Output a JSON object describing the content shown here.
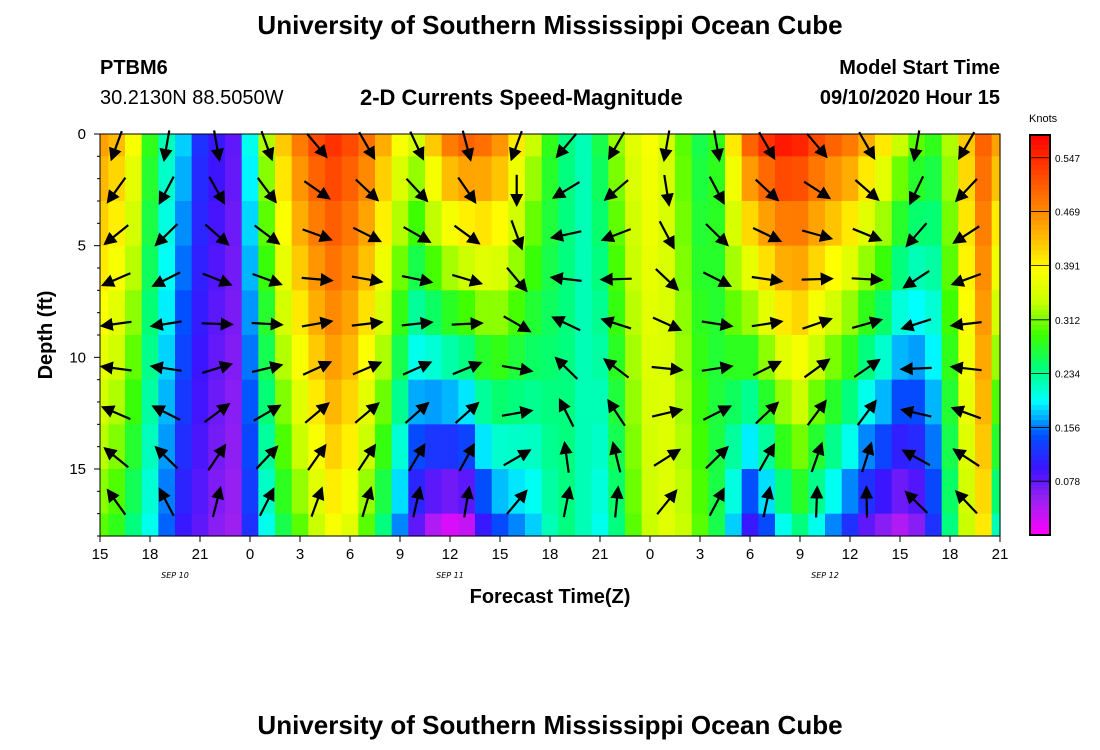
{
  "header": {
    "title_top": "University of Southern Mississippi Ocean Cube",
    "title_bottom": "University of Southern Mississippi Ocean Cube",
    "station_id": "PTBM6",
    "station_coords": "30.2130N 88.5050W",
    "chart_title": "2-D Currents Speed-Magnitude",
    "model_start_label": "Model Start Time",
    "model_start_value": "09/10/2020 Hour 15"
  },
  "chart_data": {
    "type": "heatmap",
    "title": "2-D Currents Speed-Magnitude",
    "xlabel": "Forecast Time(Z)",
    "ylabel": "Depth (ft)",
    "x_tick_labels": [
      "15",
      "18",
      "21",
      "0",
      "3",
      "6",
      "9",
      "12",
      "15",
      "18",
      "21",
      "0",
      "3",
      "6",
      "9",
      "12",
      "15",
      "18",
      "21"
    ],
    "x_range_hours": [
      0,
      54
    ],
    "date_labels": [
      {
        "text": "SEP 10",
        "hour": 4.5
      },
      {
        "text": "SEP 11",
        "hour": 21
      },
      {
        "text": "SEP 12",
        "hour": 43.5
      }
    ],
    "y_ticks": [
      0,
      5,
      10,
      15
    ],
    "ylim": [
      0,
      18
    ],
    "y_inverted": true,
    "colorbar": {
      "label": "Knots",
      "tick_labels": [
        "0.547",
        "0.469",
        "0.391",
        "0.312",
        "0.234",
        "0.156",
        "0.078"
      ],
      "range": [
        0.0,
        0.58
      ],
      "colors": [
        "#ff00ff",
        "#a020f0",
        "#3c14ff",
        "#0050ff",
        "#00ffff",
        "#00ff7a",
        "#3cff00",
        "#c8ff00",
        "#ffff00",
        "#ffb400",
        "#ff7800",
        "#ff3c00",
        "#ff0000"
      ]
    },
    "time_hours": [
      0,
      1,
      2,
      3,
      4,
      5,
      6,
      7,
      8,
      9,
      10,
      11,
      12,
      13,
      14,
      15,
      16,
      17,
      18,
      19,
      20,
      21,
      22,
      23,
      24,
      25,
      26,
      27,
      28,
      29,
      30,
      31,
      32,
      33,
      34,
      35,
      36,
      37,
      38,
      39,
      40,
      41,
      42,
      43,
      44,
      45,
      46,
      47,
      48,
      49,
      50,
      51,
      52,
      53,
      54
    ],
    "depth_ft": [
      0,
      2,
      4,
      6,
      8,
      10,
      12,
      14,
      16,
      18
    ],
    "surface_speed_knots": [
      0.45,
      0.43,
      0.38,
      0.28,
      0.22,
      0.18,
      0.12,
      0.1,
      0.08,
      0.2,
      0.33,
      0.42,
      0.48,
      0.52,
      0.54,
      0.52,
      0.49,
      0.44,
      0.38,
      0.35,
      0.42,
      0.48,
      0.5,
      0.49,
      0.46,
      0.4,
      0.34,
      0.28,
      0.24,
      0.22,
      0.26,
      0.32,
      0.36,
      0.38,
      0.35,
      0.3,
      0.26,
      0.28,
      0.4,
      0.5,
      0.54,
      0.56,
      0.55,
      0.52,
      0.5,
      0.48,
      0.44,
      0.4,
      0.34,
      0.3,
      0.28,
      0.33,
      0.42,
      0.5,
      0.45
    ],
    "bottom_speed_knots": [
      0.3,
      0.28,
      0.24,
      0.2,
      0.15,
      0.1,
      0.08,
      0.06,
      0.05,
      0.12,
      0.2,
      0.26,
      0.3,
      0.34,
      0.38,
      0.36,
      0.3,
      0.24,
      0.16,
      0.08,
      0.04,
      0.02,
      0.03,
      0.1,
      0.14,
      0.16,
      0.18,
      0.22,
      0.24,
      0.22,
      0.2,
      0.24,
      0.3,
      0.34,
      0.36,
      0.34,
      0.3,
      0.26,
      0.18,
      0.1,
      0.14,
      0.2,
      0.24,
      0.2,
      0.16,
      0.12,
      0.08,
      0.06,
      0.04,
      0.06,
      0.12,
      0.24,
      0.34,
      0.4,
      0.22
    ],
    "arrow_hours": [
      1,
      4,
      7,
      10,
      13,
      16,
      19,
      22,
      25,
      28,
      31,
      34,
      37,
      40,
      43,
      46,
      49,
      52
    ],
    "arrow_depths_ft": [
      0,
      2,
      4,
      6,
      8,
      10,
      12,
      14,
      16
    ],
    "surface_direction_deg": [
      200,
      190,
      170,
      160,
      140,
      150,
      155,
      165,
      200,
      220,
      210,
      190,
      170,
      150,
      140,
      150,
      190,
      210
    ],
    "bottom_direction_deg": [
      340,
      350,
      355,
      10,
      5,
      0,
      355,
      350,
      20,
      30,
      25,
      20,
      10,
      355,
      345,
      340,
      330,
      330
    ]
  }
}
